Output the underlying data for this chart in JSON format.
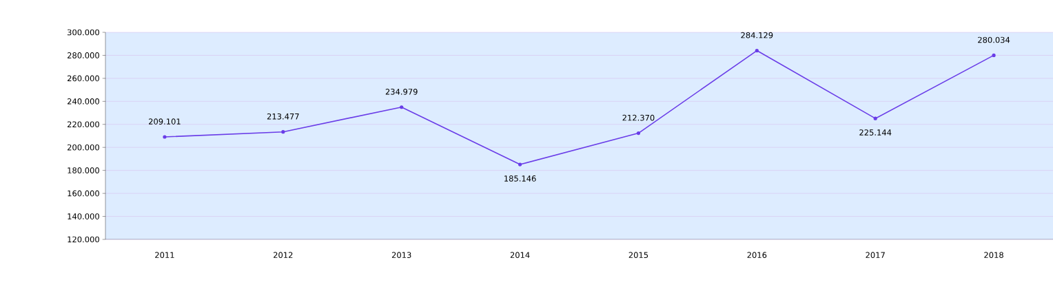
{
  "chart_data": {
    "type": "line",
    "categories": [
      "2011",
      "2012",
      "2013",
      "2014",
      "2015",
      "2016",
      "2017",
      "2018"
    ],
    "series": [
      {
        "color": "#6a3de8",
        "values": [
          209101,
          213477,
          234979,
          185146,
          212370,
          284129,
          225144,
          280034
        ],
        "value_labels": [
          "209.101",
          "213.477",
          "234.979",
          "185.146",
          "212.370",
          "284.129",
          "225.144",
          "280.034"
        ]
      }
    ],
    "ylim": [
      120000,
      300000
    ],
    "yticks": [
      {
        "value": 120000,
        "label": "120.000"
      },
      {
        "value": 140000,
        "label": "140.000"
      },
      {
        "value": 160000,
        "label": "160.000"
      },
      {
        "value": 180000,
        "label": "180.000"
      },
      {
        "value": 200000,
        "label": "200.000"
      },
      {
        "value": 220000,
        "label": "220.000"
      },
      {
        "value": 240000,
        "label": "240.000"
      },
      {
        "value": 260000,
        "label": "260.000"
      },
      {
        "value": 280000,
        "label": "280.000"
      },
      {
        "value": 300000,
        "label": "300.000"
      }
    ],
    "grid": "y",
    "marker": "circle",
    "line_style": "solid"
  }
}
